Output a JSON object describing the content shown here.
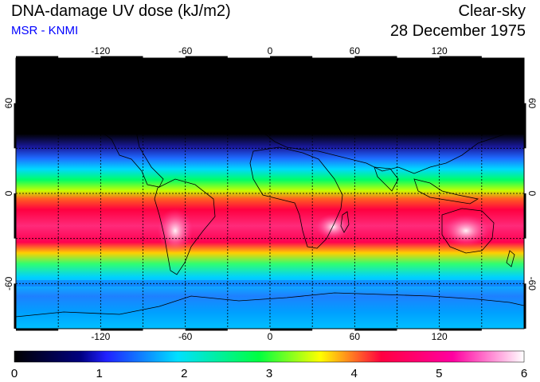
{
  "header": {
    "title": "DNA-damage UV dose (kJ/m2)",
    "subtitle": "MSR - KNMI",
    "sky_condition": "Clear-sky",
    "date": "28 December 1975"
  },
  "map": {
    "lon_range": [
      -180,
      180
    ],
    "lat_range": [
      -90,
      90
    ],
    "x_ticks": [
      "-120",
      "-60",
      "0",
      "60",
      "120"
    ],
    "x_tick_values": [
      -120,
      -60,
      0,
      60,
      120
    ],
    "y_ticks": [
      "60",
      "0",
      "-60"
    ],
    "y_tick_values": [
      60,
      0,
      -60
    ],
    "grid": true,
    "grid_spacing_deg": 30
  },
  "colorbar": {
    "labels": [
      "0",
      "1",
      "2",
      "3",
      "4",
      "5",
      "6"
    ],
    "min": 0,
    "max": 6,
    "stops": [
      "#000000",
      "#2020ff",
      "#00e0ff",
      "#00ff40",
      "#ffff00",
      "#ff0040",
      "#ff00a0",
      "#ffffff"
    ]
  },
  "colors": {
    "subtitle": "#0000ff",
    "gridline": "#000000"
  }
}
